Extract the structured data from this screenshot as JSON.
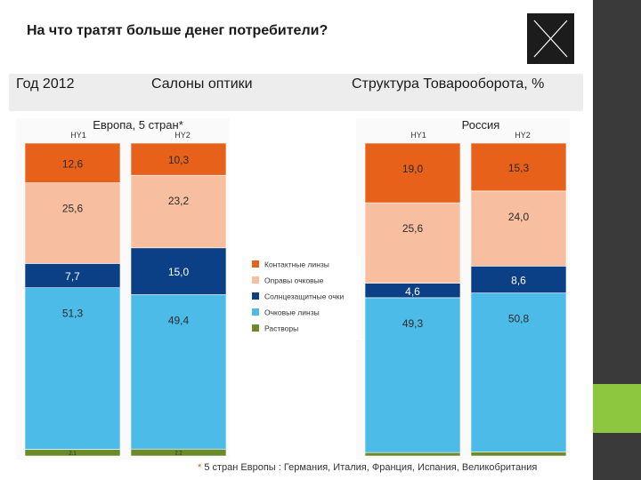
{
  "title": "На что тратят больше денег потребители?",
  "header": {
    "year": "Год 2012",
    "segment": "Салоны оптики",
    "structure": "Структура Товарооборота, %"
  },
  "footnote": {
    "star": "*",
    "text": " 5 стран Европы : Германия, Италия, Франция, Испания, Великобритания"
  },
  "colors": {
    "contact_lenses": "#e8611a",
    "frames": "#f7bfa0",
    "sunglasses": "#0b3f86",
    "lenses": "#4dbbe8",
    "solutions": "#6b8a2a",
    "accent_green": "#8dc63f"
  },
  "icons": [
    "x-logo-icon"
  ],
  "chart_data": {
    "type": "bar",
    "stacked": true,
    "legend_position": "center",
    "groups": [
      {
        "title": "Европа, 5 стран*",
        "categories": [
          "HY1",
          "HY2"
        ],
        "series": [
          {
            "name": "Растворы",
            "values": [
              2.1,
              2.2
            ],
            "labels": [
              "2.1",
              "2.2"
            ]
          },
          {
            "name": "Очковые линзы",
            "values": [
              51.3,
              49.4
            ],
            "labels": [
              "51,3",
              "49,4"
            ]
          },
          {
            "name": "Солнцезащитные очки",
            "values": [
              7.7,
              15.0
            ],
            "labels": [
              "7,7",
              "15,0"
            ]
          },
          {
            "name": "Оправы очковые",
            "values": [
              25.6,
              23.2
            ],
            "labels": [
              "25,6",
              "23,2"
            ]
          },
          {
            "name": "Контактные линзы",
            "values": [
              12.6,
              10.3
            ],
            "labels": [
              "12,6",
              "10,3"
            ]
          }
        ]
      },
      {
        "title": "Россия",
        "categories": [
          "HY1",
          "HY2"
        ],
        "series": [
          {
            "name": "Растворы",
            "values": [
              1.1,
              1.3
            ],
            "labels": [
              "",
              ""
            ]
          },
          {
            "name": "Очковые линзы",
            "values": [
              49.3,
              50.8
            ],
            "labels": [
              "49,3",
              "50,8"
            ]
          },
          {
            "name": "Солнцезащитные очки",
            "values": [
              4.6,
              8.6
            ],
            "labels": [
              "4,6",
              "8,6"
            ]
          },
          {
            "name": "Оправы очковые",
            "values": [
              25.6,
              24.0
            ],
            "labels": [
              "25,6",
              "24,0"
            ]
          },
          {
            "name": "Контактные линзы",
            "values": [
              19.0,
              15.3
            ],
            "labels": [
              "19,0",
              "15,3"
            ]
          }
        ]
      }
    ],
    "legend": [
      "Контактные линзы",
      "Оправы очковые",
      "Солнцезащитные очки",
      "Очковые линзы",
      "Растворы"
    ]
  }
}
